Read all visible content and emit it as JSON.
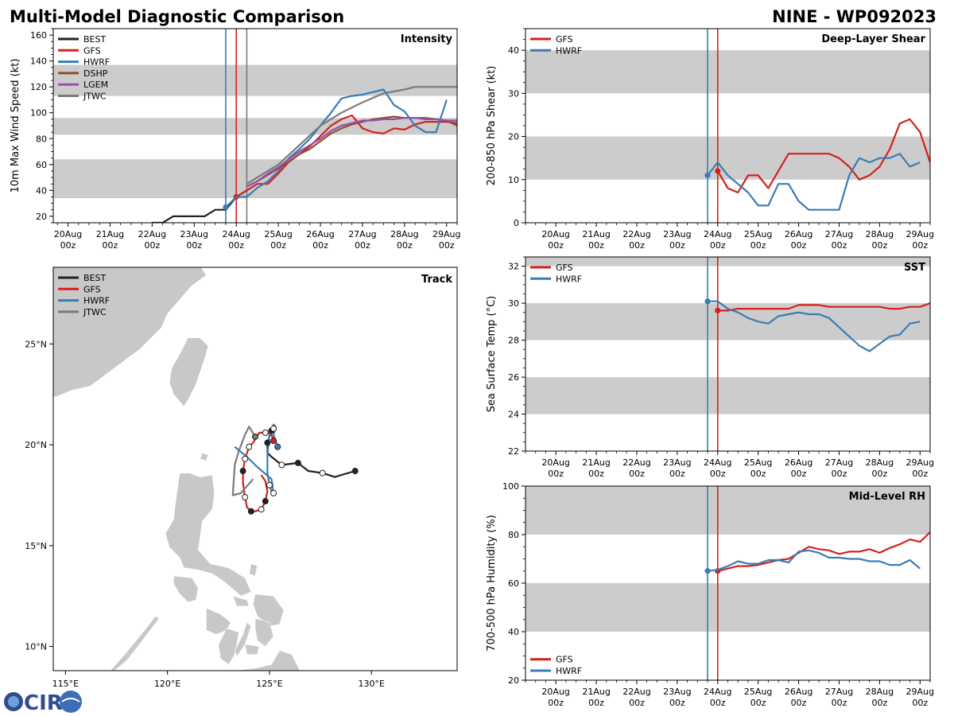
{
  "header": {
    "left_title": "Multi-Model Diagnostic Comparison",
    "right_title": "NINE - WP092023"
  },
  "logo": {
    "text": "CIRA"
  },
  "colors": {
    "BEST": "#222222",
    "GFS": "#d62020",
    "HWRF": "#3a7cb5",
    "DSHP": "#8c4f2a",
    "LGEM": "#9a4fb0",
    "JTWC": "#7a7a7a",
    "band": "#cccccc",
    "land": "#c8c8c8"
  },
  "time_axis": {
    "ticks": [
      0,
      1,
      2,
      3,
      4,
      5,
      6,
      7,
      8,
      9
    ],
    "labels": [
      "20Aug",
      "21Aug",
      "22Aug",
      "23Aug",
      "24Aug",
      "25Aug",
      "26Aug",
      "27Aug",
      "28Aug",
      "29Aug"
    ],
    "sublabel": "00z"
  },
  "chart_data": [
    {
      "id": "intensity",
      "type": "line",
      "title": "Intensity",
      "ylabel": "10m Max Wind Speed (kt)",
      "xlim": [
        -0.35,
        9.25
      ],
      "ylim": [
        15,
        165
      ],
      "yticks": [
        20,
        40,
        60,
        80,
        100,
        120,
        140,
        160
      ],
      "bands": [
        [
          34,
          64
        ],
        [
          83,
          96
        ],
        [
          113,
          137
        ]
      ],
      "vlines": [
        {
          "x": 3.75,
          "series": "HWRF"
        },
        {
          "x": 4.0,
          "series": "GFS"
        },
        {
          "x": 4.25,
          "series": "JTWC"
        }
      ],
      "legend": [
        "BEST",
        "GFS",
        "HWRF",
        "DSHP",
        "LGEM",
        "JTWC"
      ],
      "legend_position": "top-left",
      "series": [
        {
          "name": "BEST",
          "x": [
            2.0,
            2.25,
            2.5,
            2.75,
            3.0,
            3.25,
            3.5,
            3.75,
            4.0,
            4.25
          ],
          "y": [
            15,
            15,
            20,
            20,
            20,
            20,
            25,
            25,
            35,
            40
          ],
          "marker_first": false
        },
        {
          "name": "GFS",
          "x": [
            4.0,
            4.25,
            4.5,
            4.75,
            5.0,
            5.25,
            5.5,
            5.75,
            6.0,
            6.25,
            6.5,
            6.75,
            7.0,
            7.25,
            7.5,
            7.75,
            8.0,
            8.25,
            8.5,
            8.75,
            9.0,
            9.25
          ],
          "y": [
            35,
            40,
            45,
            45,
            53,
            62,
            68,
            74,
            82,
            90,
            95,
            98,
            88,
            85,
            84,
            88,
            87,
            91,
            93,
            93,
            93,
            92
          ],
          "marker_first": true
        },
        {
          "name": "HWRF",
          "x": [
            3.75,
            4.0,
            4.25,
            4.5,
            4.75,
            5.0,
            5.25,
            5.5,
            5.75,
            6.0,
            6.25,
            6.5,
            6.75,
            7.0,
            7.25,
            7.5,
            7.75,
            8.0,
            8.25,
            8.5,
            8.75,
            9.0
          ],
          "y": [
            27,
            35,
            35,
            42,
            47,
            55,
            65,
            72,
            80,
            90,
            100,
            111,
            113,
            114,
            116,
            118,
            106,
            101,
            90,
            85,
            85,
            110
          ],
          "marker_first": true
        },
        {
          "name": "DSHP",
          "x": [
            4.25,
            4.5,
            4.75,
            5.0,
            5.25,
            5.5,
            5.75,
            6.0,
            6.25,
            6.5,
            6.75,
            7.0,
            7.25,
            7.5,
            7.75,
            8.0,
            8.25,
            8.5,
            8.75,
            9.0,
            9.25
          ],
          "y": [
            43,
            47,
            52,
            57,
            62,
            68,
            72,
            78,
            84,
            88,
            91,
            93,
            95,
            96,
            97,
            96,
            96,
            96,
            95,
            94,
            90
          ],
          "marker_first": false
        },
        {
          "name": "LGEM",
          "x": [
            4.25,
            4.5,
            4.75,
            5.0,
            5.25,
            5.5,
            5.75,
            6.0,
            6.25,
            6.5,
            6.75,
            7.0,
            7.25,
            7.5,
            7.75,
            8.0,
            8.25,
            8.5,
            8.75,
            9.0,
            9.25
          ],
          "y": [
            43,
            47,
            53,
            58,
            64,
            70,
            75,
            80,
            86,
            90,
            92,
            94,
            94,
            95,
            95,
            96,
            96,
            95,
            95,
            94,
            94
          ],
          "marker_first": false
        },
        {
          "name": "JTWC",
          "x": [
            4.25,
            4.5,
            5.0,
            5.5,
            6.0,
            6.5,
            7.0,
            7.5,
            8.0,
            8.25,
            8.5,
            9.0,
            9.25
          ],
          "y": [
            45,
            50,
            60,
            75,
            90,
            100,
            108,
            115,
            118,
            120,
            120,
            120,
            120
          ],
          "marker_first": false
        }
      ]
    },
    {
      "id": "shear",
      "type": "line",
      "title": "Deep-Layer Shear",
      "ylabel": "200-850 hPa Shear (kt)",
      "xlim": [
        -0.75,
        9.25
      ],
      "ylim": [
        0,
        45
      ],
      "yticks": [
        0,
        10,
        20,
        30,
        40
      ],
      "bands": [
        [
          10,
          20
        ],
        [
          30,
          40
        ]
      ],
      "vlines": [
        {
          "x": 3.75,
          "series": "HWRF"
        },
        {
          "x": 4.0,
          "series": "GFS"
        }
      ],
      "legend": [
        "GFS",
        "HWRF"
      ],
      "legend_position": "top-left",
      "series": [
        {
          "name": "GFS",
          "x": [
            4.0,
            4.25,
            4.5,
            4.75,
            5.0,
            5.25,
            5.5,
            5.75,
            6.0,
            6.25,
            6.5,
            6.75,
            7.0,
            7.25,
            7.5,
            7.75,
            8.0,
            8.25,
            8.5,
            8.75,
            9.0,
            9.25
          ],
          "y": [
            12,
            8,
            7,
            11,
            11,
            8,
            12,
            16,
            16,
            16,
            16,
            16,
            15,
            13,
            10,
            11,
            13,
            17,
            23,
            24,
            21,
            14
          ],
          "marker_first": true
        },
        {
          "name": "HWRF",
          "x": [
            3.75,
            4.0,
            4.25,
            4.5,
            4.75,
            5.0,
            5.25,
            5.5,
            5.75,
            6.0,
            6.25,
            6.5,
            6.75,
            7.0,
            7.25,
            7.5,
            7.75,
            8.0,
            8.25,
            8.5,
            8.75,
            9.0
          ],
          "y": [
            11,
            14,
            11,
            9,
            7,
            4,
            4,
            9,
            9,
            5,
            3,
            3,
            3,
            3,
            11,
            15,
            14,
            15,
            15,
            16,
            13,
            14
          ],
          "marker_first": true
        }
      ]
    },
    {
      "id": "sst",
      "type": "line",
      "title": "SST",
      "ylabel": "Sea Surface Temp (°C)",
      "xlim": [
        -0.75,
        9.25
      ],
      "ylim": [
        22,
        32.5
      ],
      "yticks": [
        22,
        24,
        26,
        28,
        30,
        32
      ],
      "bands": [
        [
          24,
          26
        ],
        [
          28,
          30
        ],
        [
          32,
          34
        ]
      ],
      "vlines": [
        {
          "x": 3.75,
          "series": "HWRF"
        },
        {
          "x": 4.0,
          "series": "GFS"
        }
      ],
      "legend": [
        "GFS",
        "HWRF"
      ],
      "legend_position": "top-left",
      "series": [
        {
          "name": "GFS",
          "x": [
            4.0,
            4.25,
            4.5,
            4.75,
            5.0,
            5.25,
            5.5,
            5.75,
            6.0,
            6.25,
            6.5,
            6.75,
            7.0,
            7.25,
            7.5,
            7.75,
            8.0,
            8.25,
            8.5,
            8.75,
            9.0,
            9.25
          ],
          "y": [
            29.6,
            29.6,
            29.7,
            29.7,
            29.7,
            29.7,
            29.7,
            29.7,
            29.9,
            29.9,
            29.9,
            29.8,
            29.8,
            29.8,
            29.8,
            29.8,
            29.8,
            29.7,
            29.7,
            29.8,
            29.8,
            30.0
          ],
          "marker_first": true
        },
        {
          "name": "HWRF",
          "x": [
            3.75,
            4.0,
            4.25,
            4.5,
            4.75,
            5.0,
            5.25,
            5.5,
            5.75,
            6.0,
            6.25,
            6.5,
            6.75,
            7.0,
            7.25,
            7.5,
            7.75,
            8.0,
            8.25,
            8.5,
            8.75,
            9.0
          ],
          "y": [
            30.1,
            30.1,
            29.7,
            29.5,
            29.2,
            29.0,
            28.9,
            29.3,
            29.4,
            29.5,
            29.4,
            29.4,
            29.2,
            28.7,
            28.2,
            27.7,
            27.4,
            27.8,
            28.2,
            28.3,
            28.9,
            29.0
          ],
          "marker_first": true
        }
      ]
    },
    {
      "id": "rh",
      "type": "line",
      "title": "Mid-Level RH",
      "ylabel": "700-500 hPa Humidity (%)",
      "xlim": [
        -0.75,
        9.25
      ],
      "ylim": [
        20,
        100
      ],
      "yticks": [
        20,
        40,
        60,
        80,
        100
      ],
      "bands": [
        [
          40,
          60
        ],
        [
          80,
          100
        ]
      ],
      "vlines": [
        {
          "x": 3.75,
          "series": "HWRF"
        },
        {
          "x": 4.0,
          "series": "GFS"
        }
      ],
      "legend": [
        "GFS",
        "HWRF"
      ],
      "legend_position": "bottom-left",
      "series": [
        {
          "name": "GFS",
          "x": [
            4.0,
            4.25,
            4.5,
            4.75,
            5.0,
            5.25,
            5.5,
            5.75,
            6.0,
            6.25,
            6.5,
            6.75,
            7.0,
            7.25,
            7.5,
            7.75,
            8.0,
            8.25,
            8.5,
            8.75,
            9.0,
            9.25
          ],
          "y": [
            65,
            66,
            67,
            67,
            67.5,
            68.5,
            69.5,
            70,
            72.5,
            75,
            74,
            73.5,
            72,
            73,
            73,
            74,
            72.5,
            74.5,
            76,
            78,
            77,
            81
          ],
          "marker_first": true
        },
        {
          "name": "HWRF",
          "x": [
            3.75,
            4.0,
            4.25,
            4.5,
            4.75,
            5.0,
            5.25,
            5.5,
            5.75,
            6.0,
            6.25,
            6.5,
            6.75,
            7.0,
            7.25,
            7.5,
            7.75,
            8.0,
            8.25,
            8.5,
            8.75,
            9.0
          ],
          "y": [
            65,
            65.5,
            67,
            69,
            68,
            68,
            69.5,
            69.5,
            68.5,
            73,
            73.5,
            72.5,
            70.5,
            70.5,
            70,
            70,
            69,
            69,
            67.5,
            67.5,
            69.5,
            66
          ],
          "marker_first": true
        }
      ]
    },
    {
      "id": "track",
      "type": "scatter",
      "title": "Track",
      "xlim": [
        114.4,
        134.2
      ],
      "ylim": [
        8.8,
        28.8
      ],
      "xticks": [
        115,
        120,
        125,
        130
      ],
      "xtick_labels": [
        "115°E",
        "120°E",
        "125°E",
        "130°E"
      ],
      "yticks": [
        10,
        15,
        20,
        25
      ],
      "ytick_labels": [
        "10°N",
        "15°N",
        "20°N",
        "25°N"
      ],
      "legend": [
        "BEST",
        "GFS",
        "HWRF",
        "JTWC"
      ],
      "legend_position": "top-left",
      "series": [
        {
          "name": "BEST",
          "lon": [
            129.2,
            128.2,
            127.6,
            126.9,
            126.4,
            125.6,
            125.1,
            124.9,
            124.9,
            125.0,
            125.1,
            125.2
          ],
          "lat": [
            18.7,
            18.4,
            18.6,
            18.7,
            19.1,
            19.0,
            19.4,
            19.6,
            20.1,
            20.4,
            20.7,
            20.8
          ],
          "markers": [
            "filled",
            "none",
            "hollow",
            "none",
            "filled",
            "hollow",
            "none",
            "none",
            "filled",
            "none",
            "filled",
            "hollow"
          ]
        },
        {
          "name": "GFS",
          "lon": [
            125.2,
            125.1,
            124.8,
            124.5,
            124.2,
            124.0,
            123.8,
            123.7,
            123.7,
            123.8,
            123.9,
            124.1,
            124.3,
            124.6,
            124.8,
            124.9,
            124.8,
            124.6
          ],
          "lat": [
            20.2,
            20.5,
            20.6,
            20.6,
            20.1,
            19.9,
            19.3,
            18.7,
            18.1,
            17.4,
            16.9,
            16.7,
            16.7,
            16.8,
            17.2,
            17.7,
            18.2,
            18.5
          ],
          "markers": [
            "filled",
            "none",
            "hollow",
            "none",
            "none",
            "hollow",
            "hollow",
            "filled",
            "none",
            "hollow",
            "none",
            "filled",
            "none",
            "hollow",
            "filled",
            "none",
            "none",
            "none"
          ]
        },
        {
          "name": "HWRF",
          "lon": [
            125.4,
            125.2,
            125.3,
            125.2,
            125.0,
            124.9,
            124.9,
            125.0,
            125.1,
            125.2,
            125.1,
            124.4,
            123.9,
            123.3
          ],
          "lat": [
            19.9,
            20.5,
            20.9,
            21.0,
            20.5,
            19.5,
            18.6,
            18.0,
            17.7,
            17.6,
            18.3,
            18.9,
            19.4,
            19.9
          ],
          "markers": [
            "filled",
            "none",
            "none",
            "none",
            "none",
            "none",
            "none",
            "hollow",
            "none",
            "hollow",
            "none",
            "none",
            "none",
            "none"
          ]
        },
        {
          "name": "JTWC",
          "lon": [
            124.3,
            124.0,
            123.8,
            123.5,
            123.3,
            123.2,
            123.6,
            124.2
          ],
          "lat": [
            20.4,
            20.9,
            20.5,
            19.7,
            19.0,
            17.5,
            17.6,
            18.3
          ],
          "markers": [
            "filled",
            "none",
            "none",
            "none",
            "none",
            "none",
            "none",
            "none"
          ]
        }
      ]
    }
  ]
}
